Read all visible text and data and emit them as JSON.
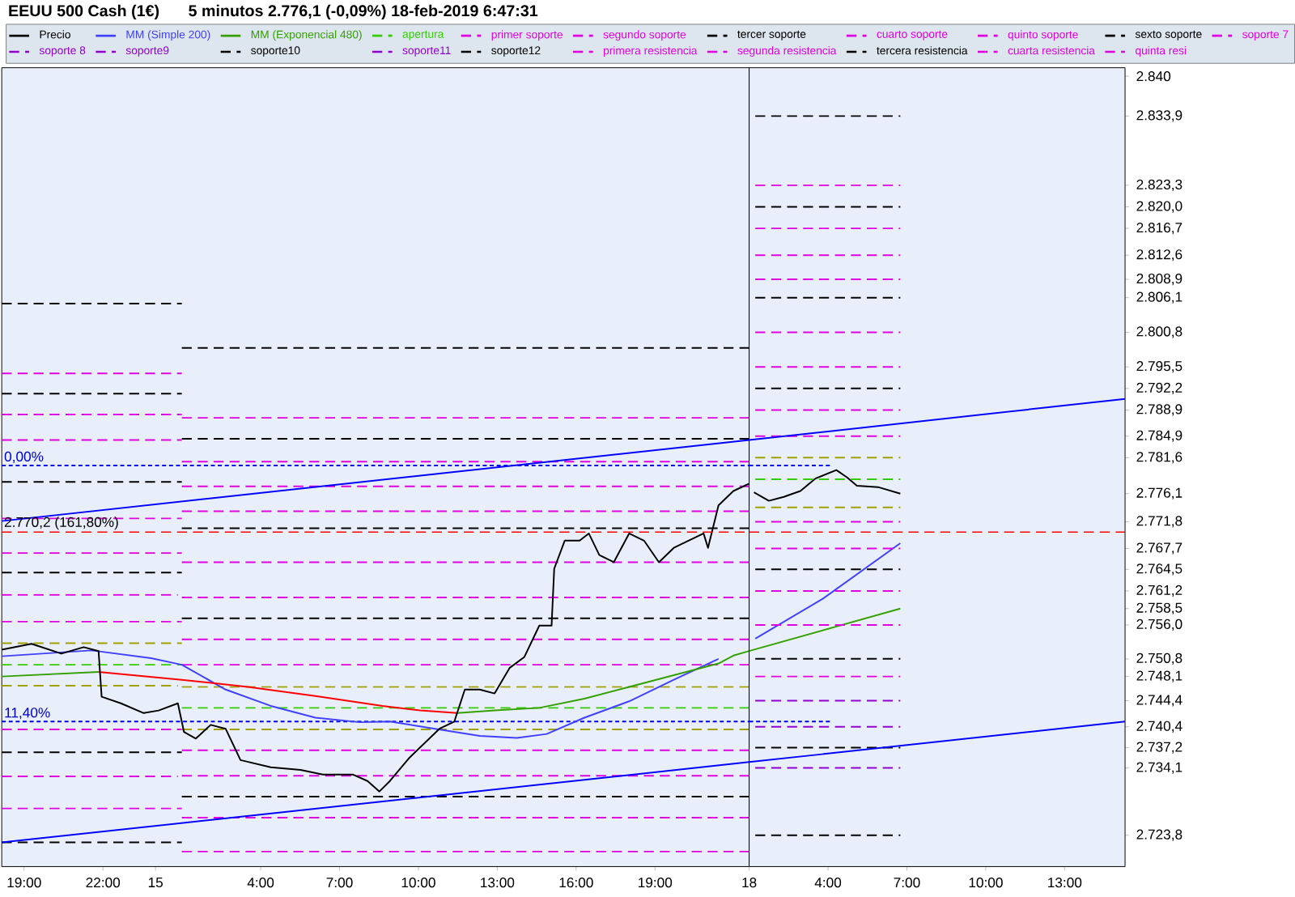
{
  "chart_data": [
    {
      "type": "line",
      "title": "EEUU 500 Cash (1€)",
      "subtitle": "5 minutos   2.776,1 (-0,09%)   18-feb-2019 6:47:31",
      "xlim": [
        "2019-02-14T18:09",
        "2019-02-15T22:35"
      ],
      "ylim": [
        2719,
        2841.3
      ],
      "tick_labels": "x",
      "xticks": [
        {
          "value": "2019-02-14T19:00",
          "label": "19:00"
        },
        {
          "value": "2019-02-14T22:00",
          "label": "22:00"
        },
        {
          "value": "2019-02-15T00:00",
          "label": "15"
        },
        {
          "value": "2019-02-15T04:00",
          "label": "4:00"
        },
        {
          "value": "2019-02-15T07:00",
          "label": "7:00"
        },
        {
          "value": "2019-02-15T10:00",
          "label": "10:00"
        },
        {
          "value": "2019-02-15T13:00",
          "label": "13:00"
        },
        {
          "value": "2019-02-15T16:00",
          "label": "16:00"
        },
        {
          "value": "2019-02-15T19:00",
          "label": "19:00"
        }
      ],
      "line_style": "solid",
      "ref_lines": [
        {
          "axis": "y",
          "value": 2770.2,
          "label": "2.770,2 (161,80%)",
          "color": "#ff0000",
          "line_style": "dashed"
        }
      ],
      "annotations": [
        {
          "text": "0,00%",
          "x": "2019-02-14T18:09",
          "y": 2780.4
        },
        {
          "text": "11,40%",
          "x": "2019-02-14T18:09",
          "y": 2741.2
        }
      ],
      "series": [
        {
          "color": "#000000",
          "line_style": "dashed",
          "x": [
            "2019-02-14T18:09",
            "2019-02-15T01:00"
          ],
          "values": [
            2805.2,
            2805.2
          ]
        },
        {
          "color": "#000000",
          "line_style": "dashed",
          "x": [
            "2019-02-14T18:09",
            "2019-02-15T01:00"
          ],
          "values": [
            2791.4,
            2791.4
          ]
        },
        {
          "color": "#000000",
          "line_style": "dashed",
          "x": [
            "2019-02-14T18:09",
            "2019-02-15T01:00"
          ],
          "values": [
            2777.9,
            2777.9
          ]
        },
        {
          "color": "#000000",
          "line_style": "dashed",
          "x": [
            "2019-02-14T18:09",
            "2019-02-15T01:00"
          ],
          "values": [
            2764.0,
            2764.0
          ]
        },
        {
          "color": "#000000",
          "line_style": "dashed",
          "x": [
            "2019-02-14T18:09",
            "2019-02-15T01:00"
          ],
          "values": [
            2736.5,
            2736.5
          ]
        },
        {
          "color": "#000000",
          "line_style": "dashed",
          "x": [
            "2019-02-14T18:09",
            "2019-02-15T01:00"
          ],
          "values": [
            2722.7,
            2722.7
          ]
        },
        {
          "color": "#000000",
          "line_style": "dashed",
          "x": [
            "2019-02-15T01:00",
            "2019-02-15T22:35"
          ],
          "values": [
            2798.4,
            2798.4
          ]
        },
        {
          "color": "#000000",
          "line_style": "dashed",
          "x": [
            "2019-02-15T01:00",
            "2019-02-15T22:35"
          ],
          "values": [
            2784.5,
            2784.5
          ]
        },
        {
          "color": "#000000",
          "line_style": "dashed",
          "x": [
            "2019-02-15T01:00",
            "2019-02-15T22:35"
          ],
          "values": [
            2770.8,
            2770.8
          ]
        },
        {
          "color": "#000000",
          "line_style": "dashed",
          "x": [
            "2019-02-15T01:00",
            "2019-02-15T22:35"
          ],
          "values": [
            2757.0,
            2757.0
          ]
        },
        {
          "color": "#000000",
          "line_style": "dashed",
          "x": [
            "2019-02-15T01:00",
            "2019-02-15T22:35"
          ],
          "values": [
            2729.7,
            2729.7
          ]
        },
        {
          "color": "#e000e0",
          "line_style": "dashed",
          "x": [
            "2019-02-14T18:09",
            "2019-02-15T01:00"
          ],
          "values": [
            2794.5,
            2794.5
          ]
        },
        {
          "color": "#e000e0",
          "line_style": "dashed",
          "x": [
            "2019-02-14T18:09",
            "2019-02-15T01:00"
          ],
          "values": [
            2788.2,
            2788.2
          ]
        },
        {
          "color": "#e000e0",
          "line_style": "dashed",
          "x": [
            "2019-02-14T18:09",
            "2019-02-15T01:00"
          ],
          "values": [
            2784.3,
            2784.3
          ]
        },
        {
          "color": "#e000e0",
          "line_style": "dashed",
          "x": [
            "2019-02-14T18:09",
            "2019-02-15T01:00"
          ],
          "values": [
            2772.3,
            2772.3
          ]
        },
        {
          "color": "#e000e0",
          "line_style": "dashed",
          "x": [
            "2019-02-14T18:09",
            "2019-02-15T01:00"
          ],
          "values": [
            2767.0,
            2767.0
          ]
        },
        {
          "color": "#e000e0",
          "line_style": "dashed",
          "x": [
            "2019-02-14T18:09",
            "2019-02-15T00:51"
          ],
          "values": [
            2760.6,
            2760.6
          ]
        },
        {
          "color": "#e000e0",
          "line_style": "dashed",
          "x": [
            "2019-02-14T18:09",
            "2019-02-15T01:00"
          ],
          "values": [
            2756.5,
            2756.5
          ]
        },
        {
          "color": "#e000e0",
          "line_style": "dashed",
          "x": [
            "2019-02-14T18:09",
            "2019-02-15T01:00"
          ],
          "values": [
            2740.0,
            2740.0
          ]
        },
        {
          "color": "#e000e0",
          "line_style": "dashed",
          "x": [
            "2019-02-14T18:09",
            "2019-02-15T00:51"
          ],
          "values": [
            2732.8,
            2732.8
          ]
        },
        {
          "color": "#e000e0",
          "line_style": "dashed",
          "x": [
            "2019-02-14T18:09",
            "2019-02-15T01:00"
          ],
          "values": [
            2727.9,
            2727.9
          ]
        },
        {
          "color": "#e000e0",
          "line_style": "dashed",
          "x": [
            "2019-02-15T01:00",
            "2019-02-15T22:35"
          ],
          "values": [
            2787.7,
            2787.7
          ]
        },
        {
          "color": "#e000e0",
          "line_style": "dashed",
          "x": [
            "2019-02-15T01:00",
            "2019-02-15T22:35"
          ],
          "values": [
            2781.0,
            2781.0
          ]
        },
        {
          "color": "#e000e0",
          "line_style": "dashed",
          "x": [
            "2019-02-15T01:00",
            "2019-02-15T22:35"
          ],
          "values": [
            2777.2,
            2777.2
          ]
        },
        {
          "color": "#e000e0",
          "line_style": "dashed",
          "x": [
            "2019-02-15T01:00",
            "2019-02-15T22:35"
          ],
          "values": [
            2773.4,
            2773.4
          ]
        },
        {
          "color": "#e000e0",
          "line_style": "dashed",
          "x": [
            "2019-02-15T01:00",
            "2019-02-15T22:35"
          ],
          "values": [
            2765.6,
            2765.6
          ]
        },
        {
          "color": "#e000e0",
          "line_style": "dashed",
          "x": [
            "2019-02-15T01:00",
            "2019-02-15T22:35"
          ],
          "values": [
            2760.2,
            2760.2
          ]
        },
        {
          "color": "#e000e0",
          "line_style": "dashed",
          "x": [
            "2019-02-15T01:00",
            "2019-02-15T22:35"
          ],
          "values": [
            2753.8,
            2753.8
          ]
        },
        {
          "color": "#e000e0",
          "line_style": "dashed",
          "x": [
            "2019-02-15T01:00",
            "2019-02-15T22:35"
          ],
          "values": [
            2749.9,
            2749.9
          ]
        },
        {
          "color": "#e000e0",
          "line_style": "dashed",
          "x": [
            "2019-02-15T01:00",
            "2019-02-15T22:35"
          ],
          "values": [
            2736.8,
            2736.8
          ]
        },
        {
          "color": "#e000e0",
          "line_style": "dashed",
          "x": [
            "2019-02-15T01:00",
            "2019-02-15T22:35"
          ],
          "values": [
            2732.9,
            2732.9
          ]
        },
        {
          "color": "#e000e0",
          "line_style": "dashed",
          "x": [
            "2019-02-15T01:00",
            "2019-02-15T22:35"
          ],
          "values": [
            2726.5,
            2726.5
          ]
        },
        {
          "color": "#e000e0",
          "line_style": "dashed",
          "x": [
            "2019-02-15T01:00",
            "2019-02-15T22:35"
          ],
          "values": [
            2721.3,
            2721.3
          ]
        },
        {
          "color": "#a0a000",
          "line_style": "dashed",
          "x": [
            "2019-02-14T18:09",
            "2019-02-15T01:00"
          ],
          "values": [
            2753.2,
            2753.2
          ]
        },
        {
          "color": "#a0a000",
          "line_style": "dashed",
          "x": [
            "2019-02-14T18:09",
            "2019-02-15T00:51"
          ],
          "values": [
            2746.7,
            2746.7
          ]
        },
        {
          "color": "#a0a000",
          "line_style": "dashed",
          "x": [
            "2019-02-15T01:00",
            "2019-02-15T22:35"
          ],
          "values": [
            2746.5,
            2746.5
          ]
        },
        {
          "color": "#a0a000",
          "line_style": "dashed",
          "x": [
            "2019-02-15T01:00",
            "2019-02-15T22:35"
          ],
          "values": [
            2740.0,
            2740.0
          ]
        },
        {
          "color": "#33cc00",
          "line_style": "dashed",
          "x": [
            "2019-02-14T18:09",
            "2019-02-15T01:00"
          ],
          "values": [
            2749.9,
            2749.9
          ]
        },
        {
          "color": "#33cc00",
          "line_style": "dashed",
          "x": [
            "2019-02-15T01:00",
            "2019-02-15T22:35"
          ],
          "values": [
            2743.3,
            2743.3
          ]
        },
        {
          "color": "#0000ff",
          "x": [
            "2019-02-14T18:09",
            "2019-02-15T22:35"
          ],
          "values": [
            2771.9,
            2784.3
          ]
        },
        {
          "color": "#0000ff",
          "x": [
            "2019-02-14T18:09",
            "2019-02-15T22:35"
          ],
          "values": [
            2722.7,
            2735.0
          ]
        },
        {
          "color": "#0000ee",
          "line_style": "dotted",
          "x": [
            "2019-02-14T18:09",
            "2019-02-15T22:35"
          ],
          "values": [
            2780.4,
            2780.4
          ]
        },
        {
          "color": "#0000ee",
          "line_style": "dotted",
          "x": [
            "2019-02-14T18:09",
            "2019-02-15T22:35"
          ],
          "values": [
            2741.2,
            2741.2
          ]
        },
        {
          "color": "#4040ff",
          "x": [
            "2019-02-14T18:09",
            "2019-02-14T21:34",
            "2019-02-14T23:50",
            "2019-02-15T01:00",
            "2019-02-15T02:40",
            "2019-02-15T04:23",
            "2019-02-15T06:05",
            "2019-02-15T07:47",
            "2019-02-15T08:55",
            "2019-02-15T10:38",
            "2019-02-15T12:20",
            "2019-02-15T13:45",
            "2019-02-15T14:53",
            "2019-02-15T16:19",
            "2019-02-15T18:01",
            "2019-02-15T19:43",
            "2019-02-15T21:25"
          ],
          "values": [
            2751.2,
            2752.1,
            2750.9,
            2749.9,
            2746.1,
            2743.6,
            2741.8,
            2741.1,
            2741.2,
            2740.1,
            2739.0,
            2738.7,
            2739.3,
            2741.8,
            2744.3,
            2747.6,
            2750.8
          ]
        },
        {
          "color": "#33a000",
          "x": [
            "2019-02-14T18:09",
            "2019-02-14T21:50"
          ],
          "values": [
            2748.1,
            2748.8
          ]
        },
        {
          "color": "#33a000",
          "x": [
            "2019-02-15T11:29",
            "2019-02-15T12:54",
            "2019-02-15T14:36",
            "2019-02-15T16:19",
            "2019-02-15T18:01",
            "2019-02-15T19:43",
            "2019-02-15T21:25",
            "2019-02-15T21:59",
            "2019-02-15T22:35"
          ],
          "values": [
            2742.5,
            2742.9,
            2743.3,
            2744.7,
            2746.5,
            2748.3,
            2750.1,
            2751.3,
            2752.0
          ]
        },
        {
          "color": "#ff0000",
          "x": [
            "2019-02-14T21:50",
            "2019-02-15T01:00",
            "2019-02-15T03:31",
            "2019-02-15T06:05",
            "2019-02-15T08:38",
            "2019-02-15T10:04",
            "2019-02-15T11:29"
          ],
          "values": [
            2748.8,
            2747.6,
            2746.5,
            2745.1,
            2743.6,
            2742.9,
            2742.5
          ]
        },
        {
          "color": "#000000",
          "x": [
            "2019-02-14T18:09",
            "2019-02-14T19:17",
            "2019-02-14T20:25",
            "2019-02-14T21:16",
            "2019-02-14T21:50",
            "2019-02-14T21:57",
            "2019-02-14T22:41",
            "2019-02-14T23:33",
            "2019-02-15T00:07",
            "2019-02-15T00:51",
            "2019-02-15T01:05",
            "2019-02-15T01:32",
            "2019-02-15T02:06",
            "2019-02-15T02:40",
            "2019-02-15T03:14",
            "2019-02-15T04:23",
            "2019-02-15T05:31",
            "2019-02-15T06:22",
            "2019-02-15T07:30",
            "2019-02-15T08:04",
            "2019-02-15T08:31",
            "2019-02-15T08:55",
            "2019-02-15T09:40",
            "2019-02-15T10:14",
            "2019-02-15T10:48",
            "2019-02-15T11:22",
            "2019-02-15T11:46",
            "2019-02-15T12:20",
            "2019-02-15T12:54",
            "2019-02-15T13:28",
            "2019-02-15T14:02",
            "2019-02-15T14:36",
            "2019-02-15T15:04",
            "2019-02-15T15:10",
            "2019-02-15T15:34",
            "2019-02-15T16:08",
            "2019-02-15T16:29",
            "2019-02-15T16:53",
            "2019-02-15T17:26",
            "2019-02-15T18:01",
            "2019-02-15T18:35",
            "2019-02-15T19:09",
            "2019-02-15T19:43",
            "2019-02-15T20:17",
            "2019-02-15T20:51",
            "2019-02-15T21:01",
            "2019-02-15T21:25",
            "2019-02-15T21:59",
            "2019-02-15T22:34"
          ],
          "values": [
            2752.2,
            2753.1,
            2751.6,
            2752.6,
            2752.0,
            2745.0,
            2744.0,
            2742.5,
            2742.9,
            2744.0,
            2739.6,
            2738.6,
            2740.7,
            2740.1,
            2735.3,
            2734.2,
            2733.8,
            2733.1,
            2733.1,
            2732.1,
            2730.5,
            2732.1,
            2735.7,
            2737.9,
            2740.1,
            2741.2,
            2746.1,
            2746.1,
            2745.5,
            2749.4,
            2751.1,
            2755.9,
            2755.9,
            2764.6,
            2768.9,
            2768.9,
            2770.0,
            2766.7,
            2765.6,
            2770.0,
            2768.9,
            2765.6,
            2767.8,
            2768.9,
            2770.0,
            2767.8,
            2774.3,
            2776.5,
            2777.6
          ]
        }
      ]
    },
    {
      "type": "line",
      "xlim": [
        "2019-02-18T01:00",
        "2019-02-18T15:18"
      ],
      "ylim": [
        2719,
        2841.3
      ],
      "xticks": [
        {
          "value": "2019-02-18T01:00",
          "label": "18"
        },
        {
          "value": "2019-02-18T04:00",
          "label": "4:00"
        },
        {
          "value": "2019-02-18T07:00",
          "label": "7:00"
        },
        {
          "value": "2019-02-18T10:00",
          "label": "10:00"
        },
        {
          "value": "2019-02-18T13:00",
          "label": "13:00"
        }
      ],
      "yticks": [
        {
          "value": 2840,
          "label": "2.840"
        },
        {
          "value": 2833.9,
          "label": "2.833,9"
        },
        {
          "value": 2823.3,
          "label": "2.823,3"
        },
        {
          "value": 2820.0,
          "label": "2.820,0"
        },
        {
          "value": 2816.7,
          "label": "2.816,7"
        },
        {
          "value": 2812.6,
          "label": "2.812,6"
        },
        {
          "value": 2808.9,
          "label": "2.808,9"
        },
        {
          "value": 2806.1,
          "label": "2.806,1"
        },
        {
          "value": 2800.8,
          "label": "2.800,8"
        },
        {
          "value": 2795.5,
          "label": "2.795,5"
        },
        {
          "value": 2792.2,
          "label": "2.792,2"
        },
        {
          "value": 2788.9,
          "label": "2.788,9"
        },
        {
          "value": 2784.9,
          "label": "2.784,9"
        },
        {
          "value": 2781.6,
          "label": "2.781,6"
        },
        {
          "value": 2776.1,
          "label": "2.776,1"
        },
        {
          "value": 2771.8,
          "label": "2.771,8"
        },
        {
          "value": 2767.7,
          "label": "2.767,7"
        },
        {
          "value": 2764.5,
          "label": "2.764,5"
        },
        {
          "value": 2761.2,
          "label": "2.761,2"
        },
        {
          "value": 2758.5,
          "label": "2.758,5"
        },
        {
          "value": 2756.0,
          "label": "2.756,0"
        },
        {
          "value": 2750.8,
          "label": "2.750,8"
        },
        {
          "value": 2748.1,
          "label": "2.748,1"
        },
        {
          "value": 2744.4,
          "label": "2.744,4"
        },
        {
          "value": 2740.4,
          "label": "2.740,4"
        },
        {
          "value": 2737.2,
          "label": "2.737,2"
        },
        {
          "value": 2734.1,
          "label": "2.734,1"
        },
        {
          "value": 2723.8,
          "label": "2.723,8"
        }
      ],
      "legend": "top",
      "line_style": "solid",
      "ref_lines": [
        {
          "axis": "y",
          "value": 2770.2,
          "color": "#ff0000",
          "line_style": "dashed"
        }
      ],
      "series": [
        {
          "name": "Precio",
          "color": "#000000",
          "x": [
            "2019-02-18T01:11",
            "2019-02-18T01:45",
            "2019-02-18T02:19",
            "2019-02-18T02:57",
            "2019-02-18T03:31",
            "2019-02-18T04:19",
            "2019-02-18T04:43",
            "2019-02-18T05:06",
            "2019-02-18T05:54",
            "2019-02-18T06:45"
          ],
          "values": [
            2776.3,
            2775.0,
            2775.6,
            2776.5,
            2778.4,
            2779.7,
            2778.6,
            2777.3,
            2777.1,
            2776.1
          ]
        },
        {
          "name": "MM (Simple 200)",
          "color": "#4040ff",
          "x": [
            "2019-02-18T01:14",
            "2019-02-18T03:48",
            "2019-02-18T06:45"
          ],
          "values": [
            2753.9,
            2760.0,
            2768.5
          ]
        },
        {
          "name": "MM (Exponencial 480)",
          "color": "#33a000",
          "x": [
            "2019-02-18T01:00",
            "2019-02-18T06:45"
          ],
          "values": [
            2752.0,
            2758.5
          ]
        },
        {
          "name": "apertura",
          "color": "#33cc00",
          "line_style": "dashed",
          "x": [
            "2019-02-18T01:14",
            "2019-02-18T06:45"
          ],
          "values": [
            2778.3,
            2778.3
          ]
        },
        {
          "name": "primer soporte",
          "color": "#e000e0",
          "line_style": "dashed",
          "x": [
            "2019-02-18T01:14",
            "2019-02-18T06:45"
          ],
          "values": [
            2771.8,
            2771.8
          ]
        },
        {
          "name": "segundo soporte",
          "color": "#e000e0",
          "line_style": "dashed",
          "x": [
            "2019-02-18T01:14",
            "2019-02-18T06:45"
          ],
          "values": [
            2767.7,
            2767.7
          ]
        },
        {
          "name": "tercer soporte",
          "color": "#000000",
          "line_style": "dashed",
          "x": [
            "2019-02-18T01:14",
            "2019-02-18T06:45"
          ],
          "values": [
            2764.5,
            2764.5
          ]
        },
        {
          "name": "cuarto soporte",
          "color": "#e000e0",
          "line_style": "dashed",
          "x": [
            "2019-02-18T01:14",
            "2019-02-18T06:45"
          ],
          "values": [
            2761.2,
            2761.2
          ]
        },
        {
          "name": "quinto soporte",
          "color": "#e000e0",
          "line_style": "dashed",
          "x": [
            "2019-02-18T01:14",
            "2019-02-18T06:45"
          ],
          "values": [
            2756.0,
            2756.0
          ]
        },
        {
          "name": "sexto soporte",
          "color": "#000000",
          "line_style": "dashed",
          "x": [
            "2019-02-18T01:14",
            "2019-02-18T06:45"
          ],
          "values": [
            2750.8,
            2750.8
          ]
        },
        {
          "name": "soporte 7",
          "color": "#e000e0",
          "line_style": "dashed",
          "x": [
            "2019-02-18T01:14",
            "2019-02-18T06:45"
          ],
          "values": [
            2748.1,
            2748.1
          ]
        },
        {
          "name": "soporte 8",
          "color": "#9000d0",
          "line_style": "dashed",
          "x": [
            "2019-02-18T01:14",
            "2019-02-18T06:45"
          ],
          "values": [
            2744.4,
            2744.4
          ]
        },
        {
          "name": "soporte9",
          "color": "#9000d0",
          "line_style": "dashed",
          "x": [
            "2019-02-18T01:14",
            "2019-02-18T06:45"
          ],
          "values": [
            2740.4,
            2740.4
          ]
        },
        {
          "name": "soporte10",
          "color": "#000000",
          "line_style": "dashed",
          "x": [
            "2019-02-18T01:14",
            "2019-02-18T06:45"
          ],
          "values": [
            2737.2,
            2737.2
          ]
        },
        {
          "name": "soporte11",
          "color": "#9000d0",
          "line_style": "dashed",
          "x": [
            "2019-02-18T01:14",
            "2019-02-18T06:45"
          ],
          "values": [
            2734.1,
            2734.1
          ]
        },
        {
          "name": "soporte12",
          "color": "#000000",
          "line_style": "dashed",
          "x": [
            "2019-02-18T01:14",
            "2019-02-18T06:45"
          ],
          "values": [
            2723.8,
            2723.8
          ]
        },
        {
          "name": "primera resistencia",
          "color": "#e000e0",
          "line_style": "dashed",
          "x": [
            "2019-02-18T01:14",
            "2019-02-18T06:45"
          ],
          "values": [
            2784.9,
            2784.9
          ]
        },
        {
          "name": "segunda resistencia",
          "color": "#e000e0",
          "line_style": "dashed",
          "x": [
            "2019-02-18T01:14",
            "2019-02-18T06:45"
          ],
          "values": [
            2788.9,
            2788.9
          ]
        },
        {
          "name": "tercera resistencia",
          "color": "#000000",
          "line_style": "dashed",
          "x": [
            "2019-02-18T01:14",
            "2019-02-18T06:45"
          ],
          "values": [
            2792.2,
            2792.2
          ]
        },
        {
          "name": "cuarta resistencia",
          "color": "#e000e0",
          "line_style": "dashed",
          "x": [
            "2019-02-18T01:14",
            "2019-02-18T06:45"
          ],
          "values": [
            2795.5,
            2795.5
          ]
        },
        {
          "name": "quinta resi",
          "color": "#e000e0",
          "line_style": "dashed",
          "x": [
            "2019-02-18T01:14",
            "2019-02-18T06:45"
          ],
          "values": [
            2800.8,
            2800.8
          ]
        },
        {
          "color": "#000000",
          "line_style": "dashed",
          "x": [
            "2019-02-18T01:14",
            "2019-02-18T06:45"
          ],
          "values": [
            2806.1,
            2806.1
          ]
        },
        {
          "color": "#000000",
          "line_style": "dashed",
          "x": [
            "2019-02-18T01:14",
            "2019-02-18T06:45"
          ],
          "values": [
            2820.0,
            2820.0
          ]
        },
        {
          "color": "#000000",
          "line_style": "dashed",
          "x": [
            "2019-02-18T01:14",
            "2019-02-18T06:45"
          ],
          "values": [
            2833.9,
            2833.9
          ]
        },
        {
          "color": "#e000e0",
          "line_style": "dashed",
          "x": [
            "2019-02-18T01:14",
            "2019-02-18T06:45"
          ],
          "values": [
            2808.9,
            2808.9
          ]
        },
        {
          "color": "#e000e0",
          "line_style": "dashed",
          "x": [
            "2019-02-18T01:14",
            "2019-02-18T06:45"
          ],
          "values": [
            2812.6,
            2812.6
          ]
        },
        {
          "color": "#e000e0",
          "line_style": "dashed",
          "x": [
            "2019-02-18T01:14",
            "2019-02-18T06:45"
          ],
          "values": [
            2816.7,
            2816.7
          ]
        },
        {
          "color": "#e000e0",
          "line_style": "dashed",
          "x": [
            "2019-02-18T01:14",
            "2019-02-18T06:45"
          ],
          "values": [
            2823.3,
            2823.3
          ]
        },
        {
          "color": "#a0a000",
          "line_style": "dashed",
          "x": [
            "2019-02-18T01:14",
            "2019-02-18T06:45"
          ],
          "values": [
            2781.6,
            2781.6
          ]
        },
        {
          "color": "#a0a000",
          "line_style": "dashed",
          "x": [
            "2019-02-18T01:14",
            "2019-02-18T06:45"
          ],
          "values": [
            2774.0,
            2774.0
          ]
        },
        {
          "color": "#0000ff",
          "x": [
            "2019-02-18T01:00",
            "2019-02-18T15:18"
          ],
          "values": [
            2784.3,
            2790.6
          ]
        },
        {
          "color": "#0000ff",
          "x": [
            "2019-02-18T01:00",
            "2019-02-18T15:18"
          ],
          "values": [
            2735.0,
            2741.2
          ]
        },
        {
          "color": "#0000ee",
          "line_style": "dotted",
          "x": [
            "2019-02-18T01:00",
            "2019-02-18T04:05"
          ],
          "values": [
            2780.4,
            2780.4
          ]
        },
        {
          "color": "#0000ee",
          "line_style": "dotted",
          "x": [
            "2019-02-18T01:00",
            "2019-02-18T04:05"
          ],
          "values": [
            2741.2,
            2741.2
          ]
        }
      ]
    }
  ]
}
